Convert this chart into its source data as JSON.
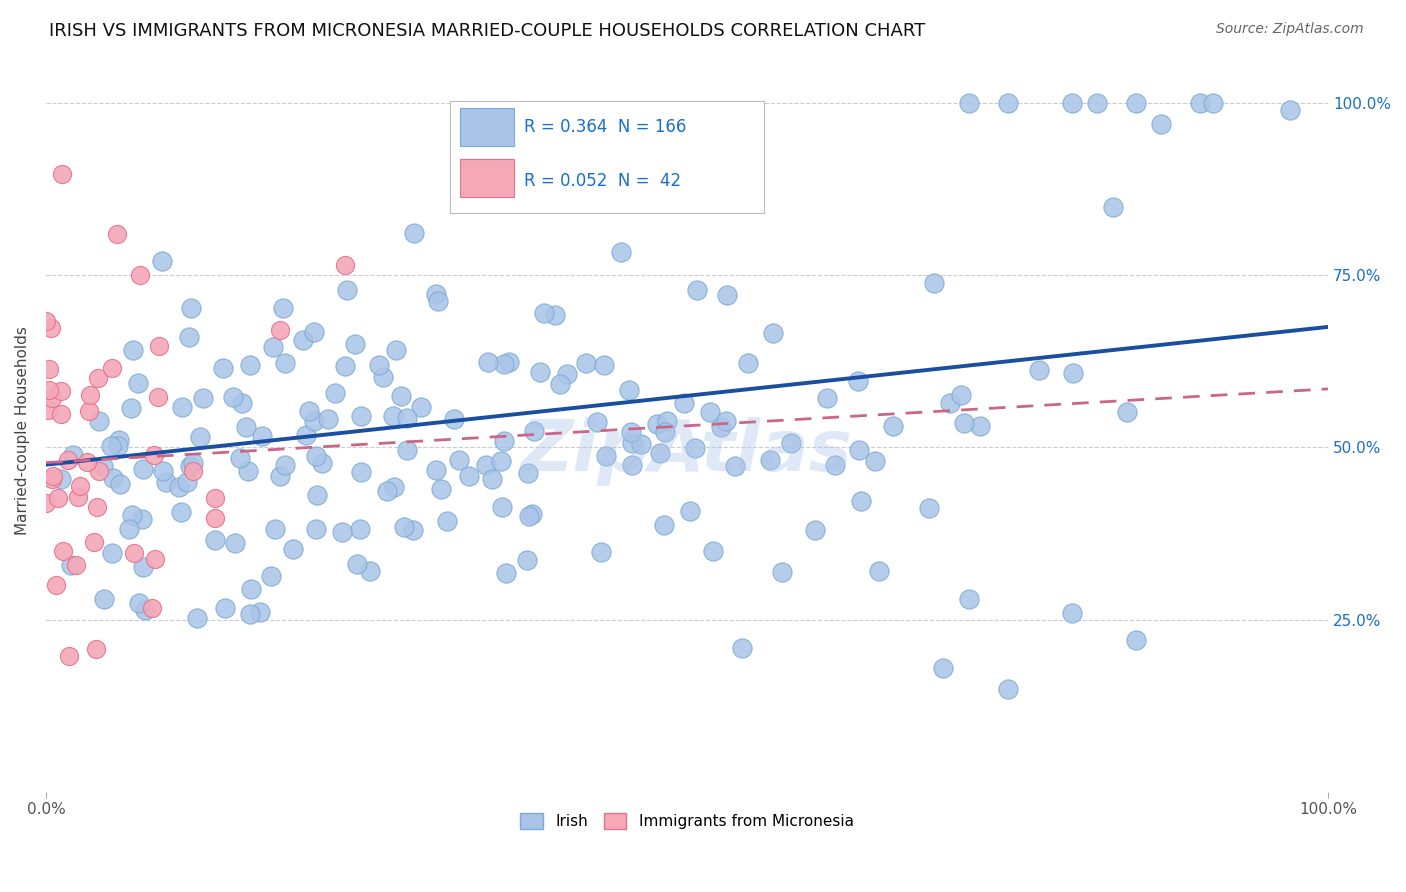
{
  "title": "IRISH VS IMMIGRANTS FROM MICRONESIA MARRIED-COUPLE HOUSEHOLDS CORRELATION CHART",
  "source_text": "Source: ZipAtlas.com",
  "ylabel": "Married-couple Households",
  "watermark": "ZipAtlas",
  "irish_R": 0.364,
  "irish_N": 166,
  "micro_R": 0.052,
  "micro_N": 42,
  "xlim": [
    0.0,
    1.0
  ],
  "ylim": [
    0.0,
    1.05
  ],
  "ytick_labels": [
    "25.0%",
    "50.0%",
    "75.0%",
    "100.0%"
  ],
  "ytick_positions": [
    0.25,
    0.5,
    0.75,
    1.0
  ],
  "grid_color": "#cccccc",
  "irish_color": "#aac4e8",
  "irish_edge_color": "#7aaad4",
  "micro_color": "#f4a8b8",
  "micro_edge_color": "#e8708a",
  "irish_line_color": "#1a4fa0",
  "micro_line_color": "#cc6688",
  "title_fontsize": 13,
  "legend_R_color": "#1a6fcc",
  "background_color": "#ffffff",
  "irish_line_y0": 0.475,
  "irish_line_y1": 0.675,
  "micro_line_y0": 0.478,
  "micro_line_y1": 0.585
}
